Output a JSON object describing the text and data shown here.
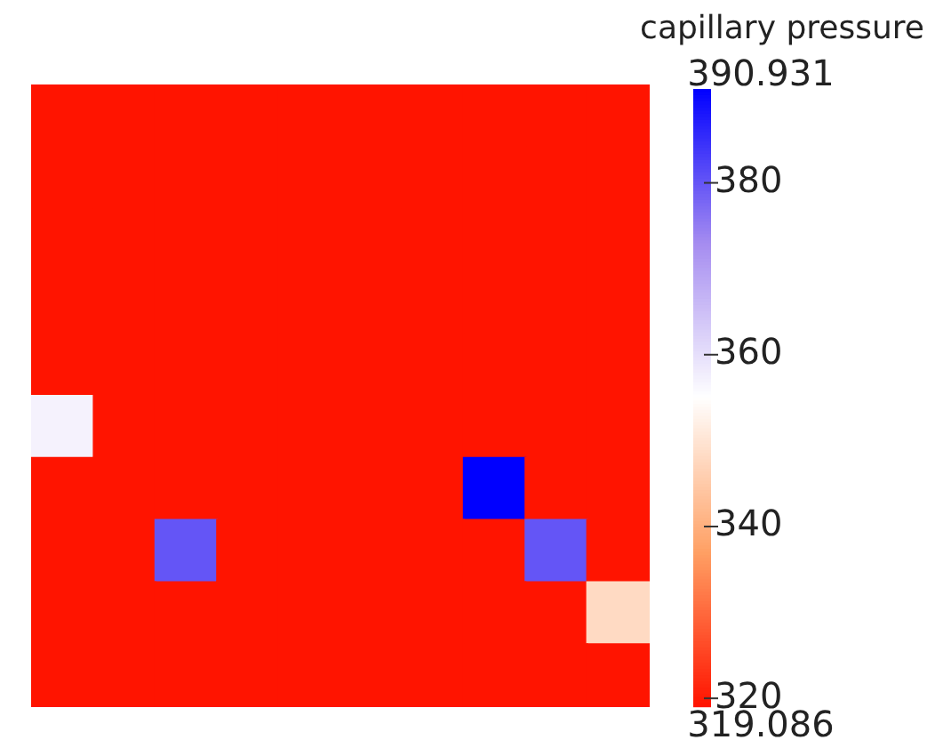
{
  "chart_data": {
    "type": "heatmap",
    "clabel": "capillary pressure",
    "categories": [
      null,
      null,
      null,
      null,
      null,
      null,
      null,
      null,
      null,
      null
    ],
    "y_categories": [
      null,
      null,
      null,
      null,
      null,
      null,
      null,
      null,
      null,
      null
    ],
    "cells": [
      [
        319.086,
        319.086,
        319.086,
        319.086,
        319.086,
        319.086,
        319.086,
        319.086,
        319.086,
        319.086
      ],
      [
        319.086,
        319.086,
        319.086,
        319.086,
        319.086,
        319.086,
        319.086,
        319.086,
        319.086,
        319.086
      ],
      [
        319.086,
        319.086,
        319.086,
        319.086,
        319.086,
        319.086,
        319.086,
        319.086,
        319.086,
        319.086
      ],
      [
        319.086,
        319.086,
        319.086,
        319.086,
        319.086,
        319.086,
        319.086,
        319.086,
        319.086,
        319.086
      ],
      [
        319.086,
        319.086,
        319.086,
        319.086,
        319.086,
        319.086,
        319.086,
        319.086,
        319.086,
        319.086
      ],
      [
        357,
        319.086,
        319.086,
        319.086,
        319.086,
        319.086,
        319.086,
        319.086,
        319.086,
        319.086
      ],
      [
        319.086,
        319.086,
        319.086,
        319.086,
        319.086,
        319.086,
        319.086,
        390.931,
        319.086,
        319.086
      ],
      [
        319.086,
        319.086,
        380,
        319.086,
        319.086,
        319.086,
        319.086,
        319.086,
        380,
        319.086
      ],
      [
        319.086,
        319.086,
        319.086,
        319.086,
        319.086,
        319.086,
        319.086,
        319.086,
        319.086,
        348
      ],
      [
        319.086,
        319.086,
        319.086,
        319.086,
        319.086,
        319.086,
        319.086,
        319.086,
        319.086,
        319.086
      ]
    ],
    "clim": [
      319.086,
      390.931
    ],
    "cticks": [
      320,
      340,
      360,
      380
    ],
    "annotations": [
      "390.931",
      "319.086"
    ],
    "tick_labels": false,
    "legend": false
  }
}
